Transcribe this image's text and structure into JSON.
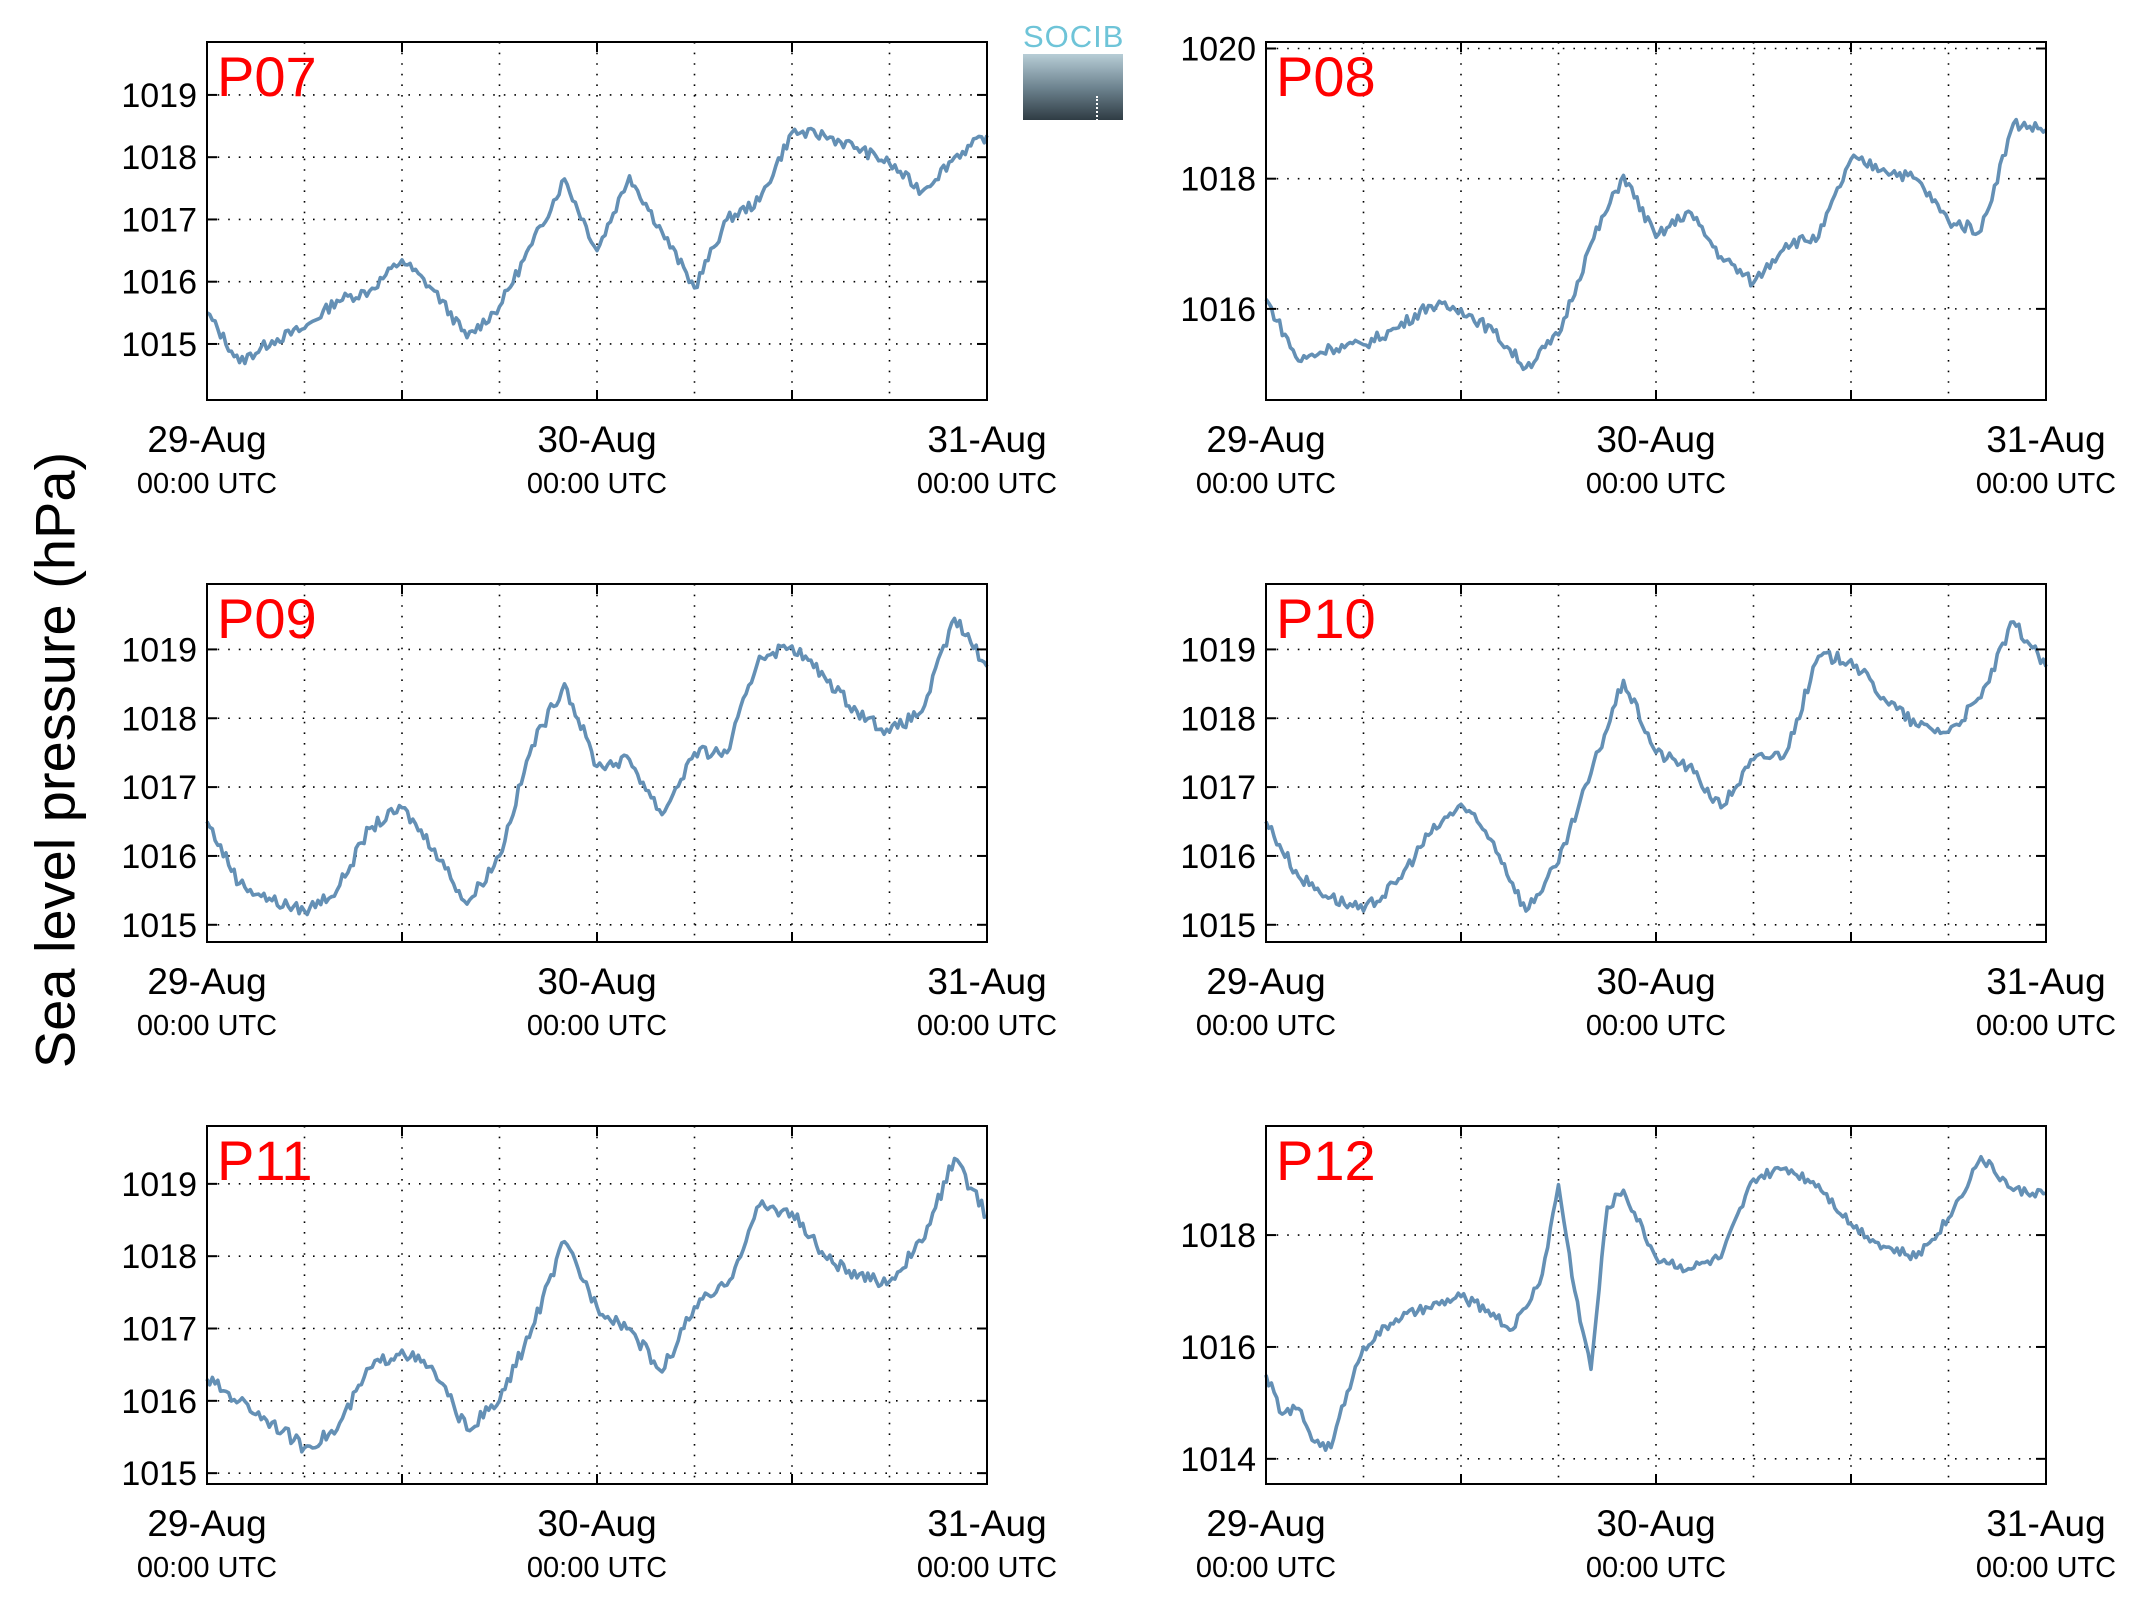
{
  "figure": {
    "ylabel": "Sea level pressure (hPa)",
    "logo_text": "SOCIB"
  },
  "chart_data": [
    {
      "type": "line",
      "label": "P07",
      "ylim": [
        1014.1,
        1019.85
      ],
      "yticks": [
        1015,
        1016,
        1017,
        1018,
        1019
      ],
      "grid": true,
      "xticks": [
        {
          "date": "29-Aug",
          "time": "00:00 UTC"
        },
        {
          "date": "30-Aug",
          "time": "00:00 UTC"
        },
        {
          "date": "31-Aug",
          "time": "00:00 UTC"
        }
      ],
      "color": "#6490b5",
      "series": [
        {
          "x": [
            0,
            2,
            4,
            6,
            8,
            10,
            12,
            14,
            16,
            18,
            20,
            22,
            24,
            26,
            28,
            30,
            32,
            34,
            36,
            38,
            40,
            42,
            44,
            46,
            48
          ],
          "values": [
            1015.5,
            1014.7,
            1015.05,
            1015.25,
            1015.7,
            1015.85,
            1016.35,
            1015.85,
            1015.1,
            1015.6,
            1016.6,
            1017.65,
            1016.5,
            1017.7,
            1016.8,
            1015.9,
            1017.0,
            1017.3,
            1018.4,
            1018.35,
            1018.15,
            1017.9,
            1017.45,
            1018.0,
            1018.35
          ]
        }
      ]
    },
    {
      "type": "line",
      "label": "P08",
      "ylim": [
        1014.6,
        1020.1
      ],
      "yticks": [
        1016,
        1018,
        1020
      ],
      "grid": true,
      "xticks": [
        {
          "date": "29-Aug",
          "time": "00:00 UTC"
        },
        {
          "date": "30-Aug",
          "time": "00:00 UTC"
        },
        {
          "date": "31-Aug",
          "time": "00:00 UTC"
        }
      ],
      "color": "#6490b5",
      "series": [
        {
          "x": [
            0,
            2,
            4,
            6,
            8,
            10,
            12,
            14,
            16,
            18,
            20,
            22,
            24,
            26,
            28,
            30,
            32,
            34,
            36,
            38,
            40,
            42,
            44,
            46,
            48
          ],
          "values": [
            1016.15,
            1015.2,
            1015.4,
            1015.45,
            1015.7,
            1016.05,
            1016.0,
            1015.65,
            1015.1,
            1015.6,
            1017.0,
            1018.05,
            1017.1,
            1017.5,
            1016.8,
            1016.4,
            1017.0,
            1017.1,
            1018.3,
            1018.15,
            1018.0,
            1017.35,
            1017.2,
            1018.85,
            1018.75
          ]
        }
      ]
    },
    {
      "type": "line",
      "label": "P09",
      "ylim": [
        1014.75,
        1019.95
      ],
      "yticks": [
        1015,
        1016,
        1017,
        1018,
        1019
      ],
      "grid": true,
      "xticks": [
        {
          "date": "29-Aug",
          "time": "00:00 UTC"
        },
        {
          "date": "30-Aug",
          "time": "00:00 UTC"
        },
        {
          "date": "31-Aug",
          "time": "00:00 UTC"
        }
      ],
      "color": "#6490b5",
      "series": [
        {
          "x": [
            0,
            2,
            4,
            6,
            8,
            10,
            12,
            14,
            16,
            18,
            20,
            22,
            24,
            26,
            28,
            30,
            32,
            34,
            36,
            38,
            40,
            42,
            44,
            46,
            48
          ],
          "values": [
            1016.5,
            1015.6,
            1015.35,
            1015.2,
            1015.5,
            1016.4,
            1016.7,
            1016.1,
            1015.3,
            1016.0,
            1017.6,
            1018.5,
            1017.3,
            1017.4,
            1016.6,
            1017.5,
            1017.5,
            1018.9,
            1019.05,
            1018.6,
            1018.1,
            1017.8,
            1018.1,
            1019.45,
            1018.75
          ]
        }
      ]
    },
    {
      "type": "line",
      "label": "P10",
      "ylim": [
        1014.75,
        1019.95
      ],
      "yticks": [
        1015,
        1016,
        1017,
        1018,
        1019
      ],
      "grid": true,
      "xticks": [
        {
          "date": "29-Aug",
          "time": "00:00 UTC"
        },
        {
          "date": "30-Aug",
          "time": "00:00 UTC"
        },
        {
          "date": "31-Aug",
          "time": "00:00 UTC"
        }
      ],
      "color": "#6490b5",
      "series": [
        {
          "x": [
            0,
            2,
            4,
            6,
            8,
            10,
            12,
            14,
            16,
            18,
            20,
            22,
            24,
            26,
            28,
            30,
            32,
            34,
            36,
            38,
            40,
            42,
            44,
            46,
            48
          ],
          "values": [
            1016.5,
            1015.7,
            1015.4,
            1015.2,
            1015.6,
            1016.3,
            1016.75,
            1016.2,
            1015.2,
            1015.9,
            1017.2,
            1018.55,
            1017.5,
            1017.3,
            1016.7,
            1017.4,
            1017.5,
            1018.9,
            1018.85,
            1018.3,
            1017.9,
            1017.8,
            1018.3,
            1019.4,
            1018.75
          ]
        }
      ]
    },
    {
      "type": "line",
      "label": "P11",
      "ylim": [
        1014.85,
        1019.8
      ],
      "yticks": [
        1015,
        1016,
        1017,
        1018,
        1019
      ],
      "grid": true,
      "xticks": [
        {
          "date": "29-Aug",
          "time": "00:00 UTC"
        },
        {
          "date": "30-Aug",
          "time": "00:00 UTC"
        },
        {
          "date": "31-Aug",
          "time": "00:00 UTC"
        }
      ],
      "color": "#6490b5",
      "series": [
        {
          "x": [
            0,
            2,
            4,
            6,
            8,
            10,
            12,
            14,
            16,
            18,
            20,
            22,
            24,
            26,
            28,
            30,
            32,
            34,
            36,
            38,
            40,
            42,
            44,
            46,
            48
          ],
          "values": [
            1016.3,
            1016.0,
            1015.7,
            1015.35,
            1015.6,
            1016.45,
            1016.7,
            1016.4,
            1015.6,
            1016.0,
            1017.0,
            1018.2,
            1017.3,
            1017.0,
            1016.4,
            1017.3,
            1017.6,
            1018.7,
            1018.6,
            1018.0,
            1017.7,
            1017.65,
            1018.2,
            1019.35,
            1018.55
          ]
        }
      ]
    },
    {
      "type": "line",
      "label": "P12",
      "ylim": [
        1013.55,
        1019.95
      ],
      "yticks": [
        1014,
        1016,
        1018
      ],
      "grid": true,
      "xticks": [
        {
          "date": "29-Aug",
          "time": "00:00 UTC"
        },
        {
          "date": "30-Aug",
          "time": "00:00 UTC"
        },
        {
          "date": "31-Aug",
          "time": "00:00 UTC"
        }
      ],
      "color": "#6490b5",
      "series": [
        {
          "x": [
            0,
            1,
            2,
            3,
            4,
            5,
            6,
            8,
            10,
            12,
            14,
            15,
            16,
            17,
            18,
            19,
            20,
            21,
            22,
            24,
            26,
            28,
            30,
            32,
            34,
            36,
            38,
            40,
            42,
            44,
            46,
            48
          ],
          "values": [
            1015.5,
            1014.8,
            1014.9,
            1014.3,
            1014.2,
            1015.2,
            1016.0,
            1016.5,
            1016.7,
            1016.9,
            1016.6,
            1016.3,
            1016.7,
            1017.3,
            1018.9,
            1017.0,
            1015.6,
            1018.5,
            1018.8,
            1017.6,
            1017.4,
            1017.6,
            1019.0,
            1019.2,
            1018.9,
            1018.2,
            1017.8,
            1017.6,
            1018.3,
            1019.4,
            1018.8,
            1018.75
          ]
        }
      ]
    }
  ]
}
